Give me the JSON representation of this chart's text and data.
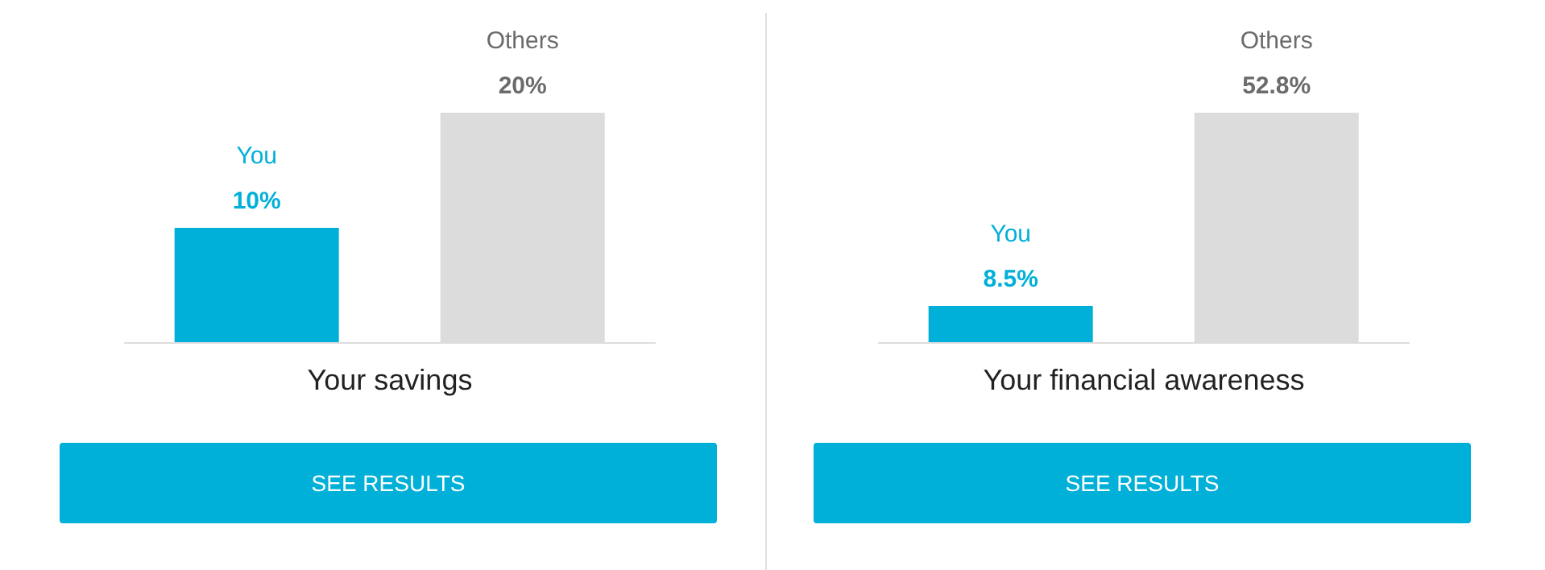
{
  "chart_data": [
    {
      "type": "bar",
      "categories": [
        "You",
        "Others"
      ],
      "values": [
        10,
        20
      ],
      "colors": [
        "#00b0d8",
        "#dcdcdc"
      ],
      "value_labels": [
        "10%",
        "20%"
      ],
      "xlabel": "Your savings",
      "annotations": [
        "SEE RESULTS"
      ]
    },
    {
      "type": "bar",
      "categories": [
        "You",
        "Others"
      ],
      "values": [
        8.5,
        52.8
      ],
      "colors": [
        "#00b0d8",
        "#dcdcdc"
      ],
      "value_labels": [
        "8.5%",
        "52.8%"
      ],
      "xlabel": "Your financial awareness",
      "annotations": [
        "SEE RESULTS"
      ]
    }
  ]
}
